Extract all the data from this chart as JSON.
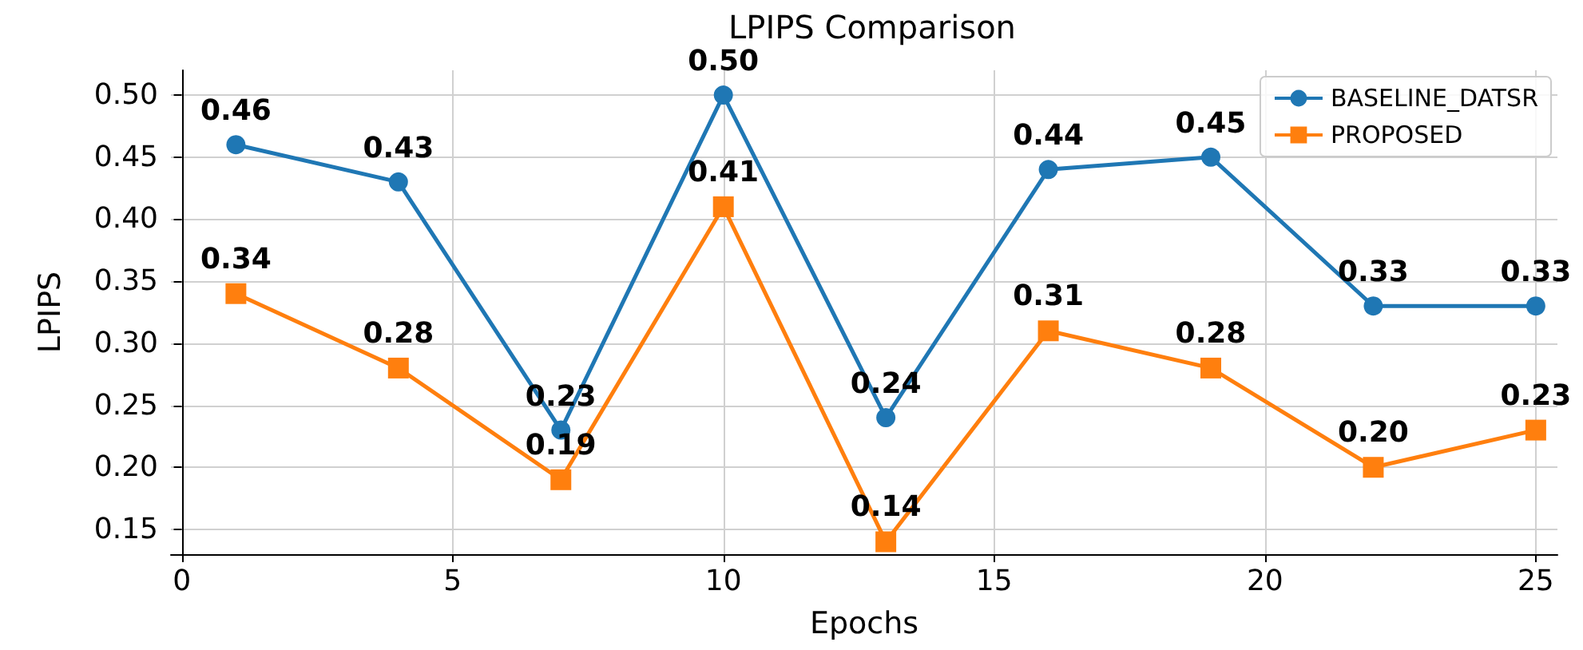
{
  "chart_data": {
    "type": "line",
    "title": "LPIPS Comparison",
    "xlabel": "Epochs",
    "ylabel": "LPIPS",
    "x": [
      1,
      4,
      7,
      10,
      13,
      16,
      19,
      22,
      25
    ],
    "series": [
      {
        "name": "BASELINE_DATSR",
        "color": "#1f77b4",
        "marker": "circle",
        "values": [
          0.46,
          0.43,
          0.23,
          0.5,
          0.24,
          0.44,
          0.45,
          0.33,
          0.33
        ],
        "value_labels": [
          "0.46",
          "0.43",
          "0.23",
          "0.50",
          "0.24",
          "0.44",
          "0.45",
          "0.33",
          "0.33"
        ]
      },
      {
        "name": "PROPOSED",
        "color": "#ff7f0e",
        "marker": "square",
        "values": [
          0.34,
          0.28,
          0.19,
          0.41,
          0.14,
          0.31,
          0.28,
          0.2,
          0.23
        ],
        "value_labels": [
          "0.34",
          "0.28",
          "0.19",
          "0.41",
          "0.14",
          "0.31",
          "0.28",
          "0.20",
          "0.23"
        ]
      }
    ],
    "xlim": [
      -0.2,
      25.4
    ],
    "xticks": [
      0,
      5,
      10,
      15,
      20,
      25
    ],
    "ylim": [
      0.13,
      0.52
    ],
    "yticks": [
      {
        "value": 0.15,
        "label": "0.15"
      },
      {
        "value": 0.2,
        "label": "0.20"
      },
      {
        "value": 0.25,
        "label": "0.25"
      },
      {
        "value": 0.3,
        "label": "0.30"
      },
      {
        "value": 0.35,
        "label": "0.35"
      },
      {
        "value": 0.4,
        "label": "0.40"
      },
      {
        "value": 0.45,
        "label": "0.45"
      },
      {
        "value": 0.5,
        "label": "0.50"
      }
    ],
    "grid": true,
    "legend": "top right",
    "line_style": "solid"
  }
}
